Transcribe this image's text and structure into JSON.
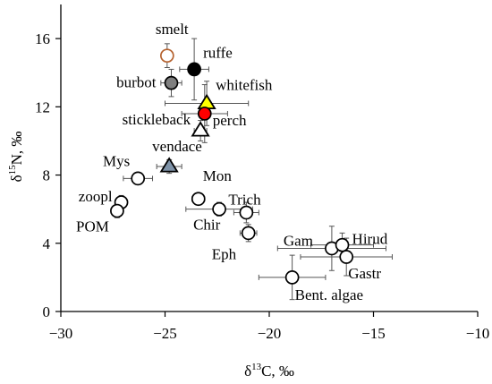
{
  "chart_data": {
    "type": "scatter",
    "title": "",
    "xlabel": {
      "prefix": "δ",
      "sup": "13",
      "main": "C, ‰"
    },
    "ylabel": {
      "prefix": "δ",
      "sup": "15",
      "main": "N, ‰"
    },
    "xlim": [
      -30,
      -10
    ],
    "ylim": [
      0,
      18
    ],
    "xticks": [
      -30,
      -25,
      -20,
      -15,
      -10
    ],
    "xtick_labels": [
      "−30",
      "−25",
      "−20",
      "−15",
      "−10"
    ],
    "yticks": [
      0,
      4,
      8,
      12,
      16
    ],
    "ytick_labels": [
      "0",
      "4",
      "8",
      "12",
      "16"
    ],
    "grid": false,
    "points": [
      {
        "label": "smelt",
        "x": -24.9,
        "y": 15.0,
        "xerr": 0,
        "yerr": 0.7,
        "marker": "circle",
        "fill": "#ffffff",
        "stroke": "#b5622f"
      },
      {
        "label": "ruffe",
        "x": -23.6,
        "y": 14.2,
        "xerr": 0.7,
        "yerr": 1.8,
        "marker": "circle",
        "fill": "#000000",
        "stroke": "#000000"
      },
      {
        "label": "burbot",
        "x": -24.7,
        "y": 13.4,
        "xerr": 0.5,
        "yerr": 0.8,
        "marker": "circle",
        "fill": "#7f7f7f",
        "stroke": "#000000"
      },
      {
        "label": "whitefish",
        "x": -23.0,
        "y": 12.2,
        "xerr": 2.0,
        "yerr": 1.3,
        "marker": "triangle",
        "fill": "#ffff00",
        "stroke": "#000000"
      },
      {
        "label": "perch",
        "x": -23.1,
        "y": 11.6,
        "xerr": 1.1,
        "yerr": 1.7,
        "marker": "circle",
        "fill": "#ff0000",
        "stroke": "#000000"
      },
      {
        "label": "stickleback",
        "x": -23.3,
        "y": 10.6,
        "xerr": 0.3,
        "yerr": 0.6,
        "marker": "triangle",
        "fill": "#ffffff",
        "stroke": "#000000"
      },
      {
        "label": "vendace",
        "x": -24.8,
        "y": 8.5,
        "xerr": 0.6,
        "yerr": 0.4,
        "marker": "triangle",
        "fill": "#7f93a8",
        "stroke": "#000000"
      },
      {
        "label": "Mys",
        "x": -26.3,
        "y": 7.8,
        "xerr": 0.7,
        "yerr": 0.3,
        "marker": "circle",
        "fill": "#ffffff",
        "stroke": "#000000"
      },
      {
        "label": "zoopl",
        "x": -27.1,
        "y": 6.4,
        "xerr": 0.3,
        "yerr": 0.4,
        "marker": "circle",
        "fill": "#ffffff",
        "stroke": "#000000"
      },
      {
        "label": "POM",
        "x": -27.3,
        "y": 5.9,
        "xerr": 0.3,
        "yerr": 0.4,
        "marker": "circle",
        "fill": "#ffffff",
        "stroke": "#000000"
      },
      {
        "label": "Mon",
        "x": -23.4,
        "y": 6.6,
        "xerr": 0.3,
        "yerr": 0.3,
        "marker": "circle",
        "fill": "#ffffff",
        "stroke": "#000000"
      },
      {
        "label": "Chir",
        "x": -22.4,
        "y": 6.0,
        "xerr": 1.6,
        "yerr": 0.4,
        "marker": "circle",
        "fill": "#ffffff",
        "stroke": "#000000"
      },
      {
        "label": "Trich",
        "x": -21.1,
        "y": 5.8,
        "xerr": 0.6,
        "yerr": 0.6,
        "marker": "circle",
        "fill": "#ffffff",
        "stroke": "#000000"
      },
      {
        "label": "Eph",
        "x": -21.0,
        "y": 4.6,
        "xerr": 0.4,
        "yerr": 0.5,
        "marker": "circle",
        "fill": "#ffffff",
        "stroke": "#000000"
      },
      {
        "label": "Gam",
        "x": -17.0,
        "y": 3.7,
        "xerr": 2.6,
        "yerr": 1.3,
        "marker": "circle",
        "fill": "#ffffff",
        "stroke": "#000000"
      },
      {
        "label": "Hirud",
        "x": -16.5,
        "y": 3.9,
        "xerr": 1.5,
        "yerr": 0.7,
        "marker": "circle",
        "fill": "#ffffff",
        "stroke": "#000000"
      },
      {
        "label": "Gastr",
        "x": -16.3,
        "y": 3.2,
        "xerr": 2.2,
        "yerr": 1.1,
        "marker": "circle",
        "fill": "#ffffff",
        "stroke": "#000000"
      },
      {
        "label": "Bent. algae",
        "x": -18.9,
        "y": 2.0,
        "xerr": 1.6,
        "yerr": 1.3,
        "marker": "circle",
        "fill": "#ffffff",
        "stroke": "#000000"
      }
    ]
  }
}
